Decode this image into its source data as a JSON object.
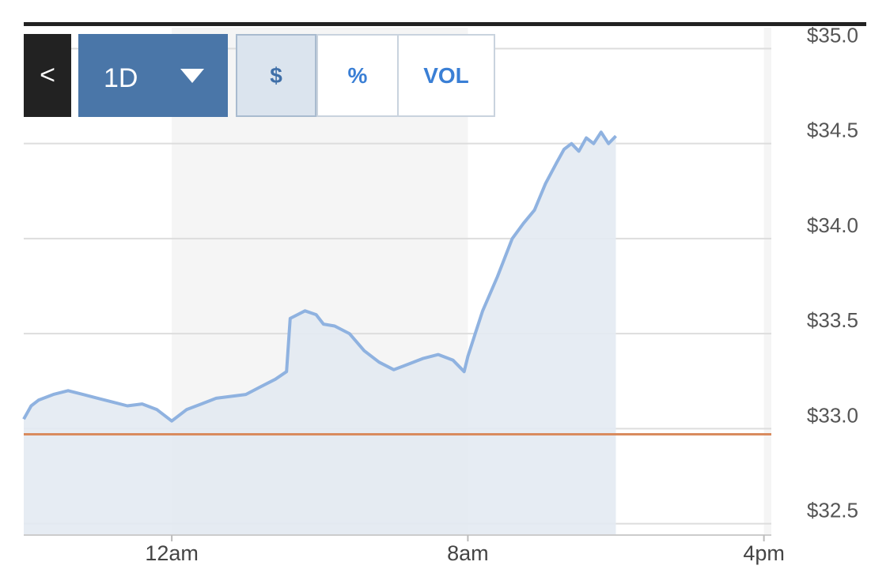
{
  "toolbar": {
    "back_label": "<",
    "range_label": "1D",
    "modes": [
      {
        "label": "$",
        "active": true
      },
      {
        "label": "%",
        "active": false
      },
      {
        "label": "VOL",
        "active": false
      }
    ]
  },
  "chart_data": {
    "type": "area",
    "title": "",
    "xlabel": "",
    "ylabel": "",
    "ylim": [
      32.44,
      35.11
    ],
    "x_range_hours": [
      -4,
      16.2
    ],
    "x_tick_hours": [
      0,
      8,
      16
    ],
    "x_tick_labels": [
      "12am",
      "8am",
      "4pm"
    ],
    "y_ticks": [
      32.5,
      33.0,
      33.5,
      34.0,
      34.5,
      35.0
    ],
    "y_tick_labels": [
      "$32.5",
      "$33.0",
      "$33.5",
      "$34.0",
      "$34.5",
      "$35.0"
    ],
    "grid": true,
    "baseline": 32.97,
    "colors": {
      "line": "#8fb2e0",
      "fill": "#e3eaf2",
      "baseline": "#d98b5e",
      "grid": "#dddddd",
      "shade": "#f5f5f5"
    },
    "series": [
      {
        "x": [
          -4,
          -3.8,
          -3.6,
          -3.2,
          -2.8,
          -2.4,
          -2.0,
          -1.6,
          -1.2,
          -0.8,
          -0.4,
          0,
          0.4,
          0.8,
          1.2,
          1.6,
          2.0,
          2.4,
          2.8,
          3.1,
          3.2,
          3.6,
          3.9,
          4.1,
          4.4,
          4.8,
          5.2,
          5.6,
          6.0,
          6.4,
          6.8,
          7.2,
          7.6,
          7.9,
          8.0,
          8.2,
          8.4,
          8.8,
          9.2,
          9.5,
          9.8,
          10.1,
          10.4,
          10.6,
          10.8,
          11.0,
          11.2,
          11.4,
          11.6,
          11.8,
          12.0
        ],
        "y": [
          33.05,
          33.12,
          33.15,
          33.18,
          33.2,
          33.18,
          33.16,
          33.14,
          33.12,
          33.13,
          33.1,
          33.04,
          33.1,
          33.13,
          33.16,
          33.17,
          33.18,
          33.22,
          33.26,
          33.3,
          33.58,
          33.62,
          33.6,
          33.55,
          33.54,
          33.5,
          33.41,
          33.35,
          33.31,
          33.34,
          33.37,
          33.39,
          33.36,
          33.3,
          33.38,
          33.5,
          33.62,
          33.8,
          34.0,
          34.08,
          34.15,
          34.29,
          34.4,
          34.47,
          34.5,
          34.46,
          34.53,
          34.5,
          34.56,
          34.5,
          34.54
        ]
      }
    ]
  }
}
